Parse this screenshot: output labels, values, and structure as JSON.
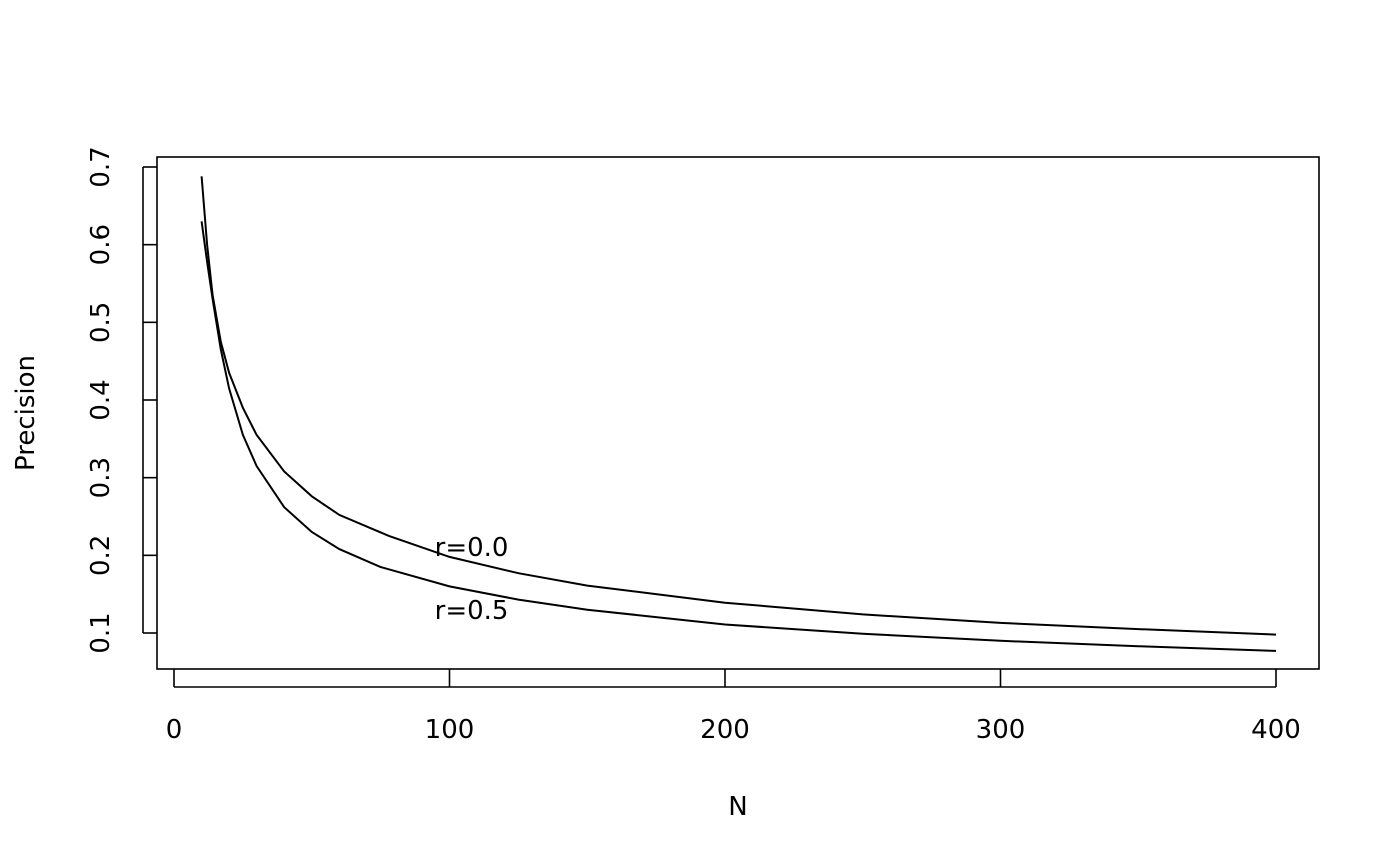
{
  "chart_data": {
    "type": "line",
    "title": "",
    "xlabel": "N",
    "ylabel": "Precision",
    "xlim": [
      0,
      400
    ],
    "ylim": [
      0.05,
      0.71
    ],
    "x_ticks": [
      "0",
      "100",
      "200",
      "300",
      "400"
    ],
    "y_ticks": [
      "0.1",
      "0.2",
      "0.3",
      "0.4",
      "0.5",
      "0.6",
      "0.7"
    ],
    "grid": false,
    "legend": "none",
    "series": [
      {
        "name": "r=0.0",
        "color": "#000000",
        "x": [
          10,
          12,
          14,
          17,
          20,
          25,
          30,
          40,
          50,
          60,
          78,
          100,
          125,
          150,
          200,
          250,
          300,
          350,
          400
        ],
        "y": [
          0.688,
          0.6,
          0.535,
          0.475,
          0.435,
          0.39,
          0.355,
          0.308,
          0.276,
          0.252,
          0.225,
          0.198,
          0.177,
          0.161,
          0.139,
          0.124,
          0.113,
          0.105,
          0.098
        ],
        "label_at": [
          108,
          0.212
        ]
      },
      {
        "name": "r=0.5",
        "color": "#000000",
        "x": [
          10,
          12,
          14,
          17,
          20,
          25,
          30,
          40,
          50,
          60,
          75,
          100,
          125,
          150,
          200,
          250,
          300,
          350,
          400
        ],
        "y": [
          0.63,
          0.578,
          0.53,
          0.465,
          0.415,
          0.355,
          0.315,
          0.262,
          0.23,
          0.208,
          0.185,
          0.16,
          0.143,
          0.13,
          0.111,
          0.099,
          0.09,
          0.083,
          0.077
        ],
        "label_at": [
          108,
          0.131
        ]
      }
    ]
  }
}
